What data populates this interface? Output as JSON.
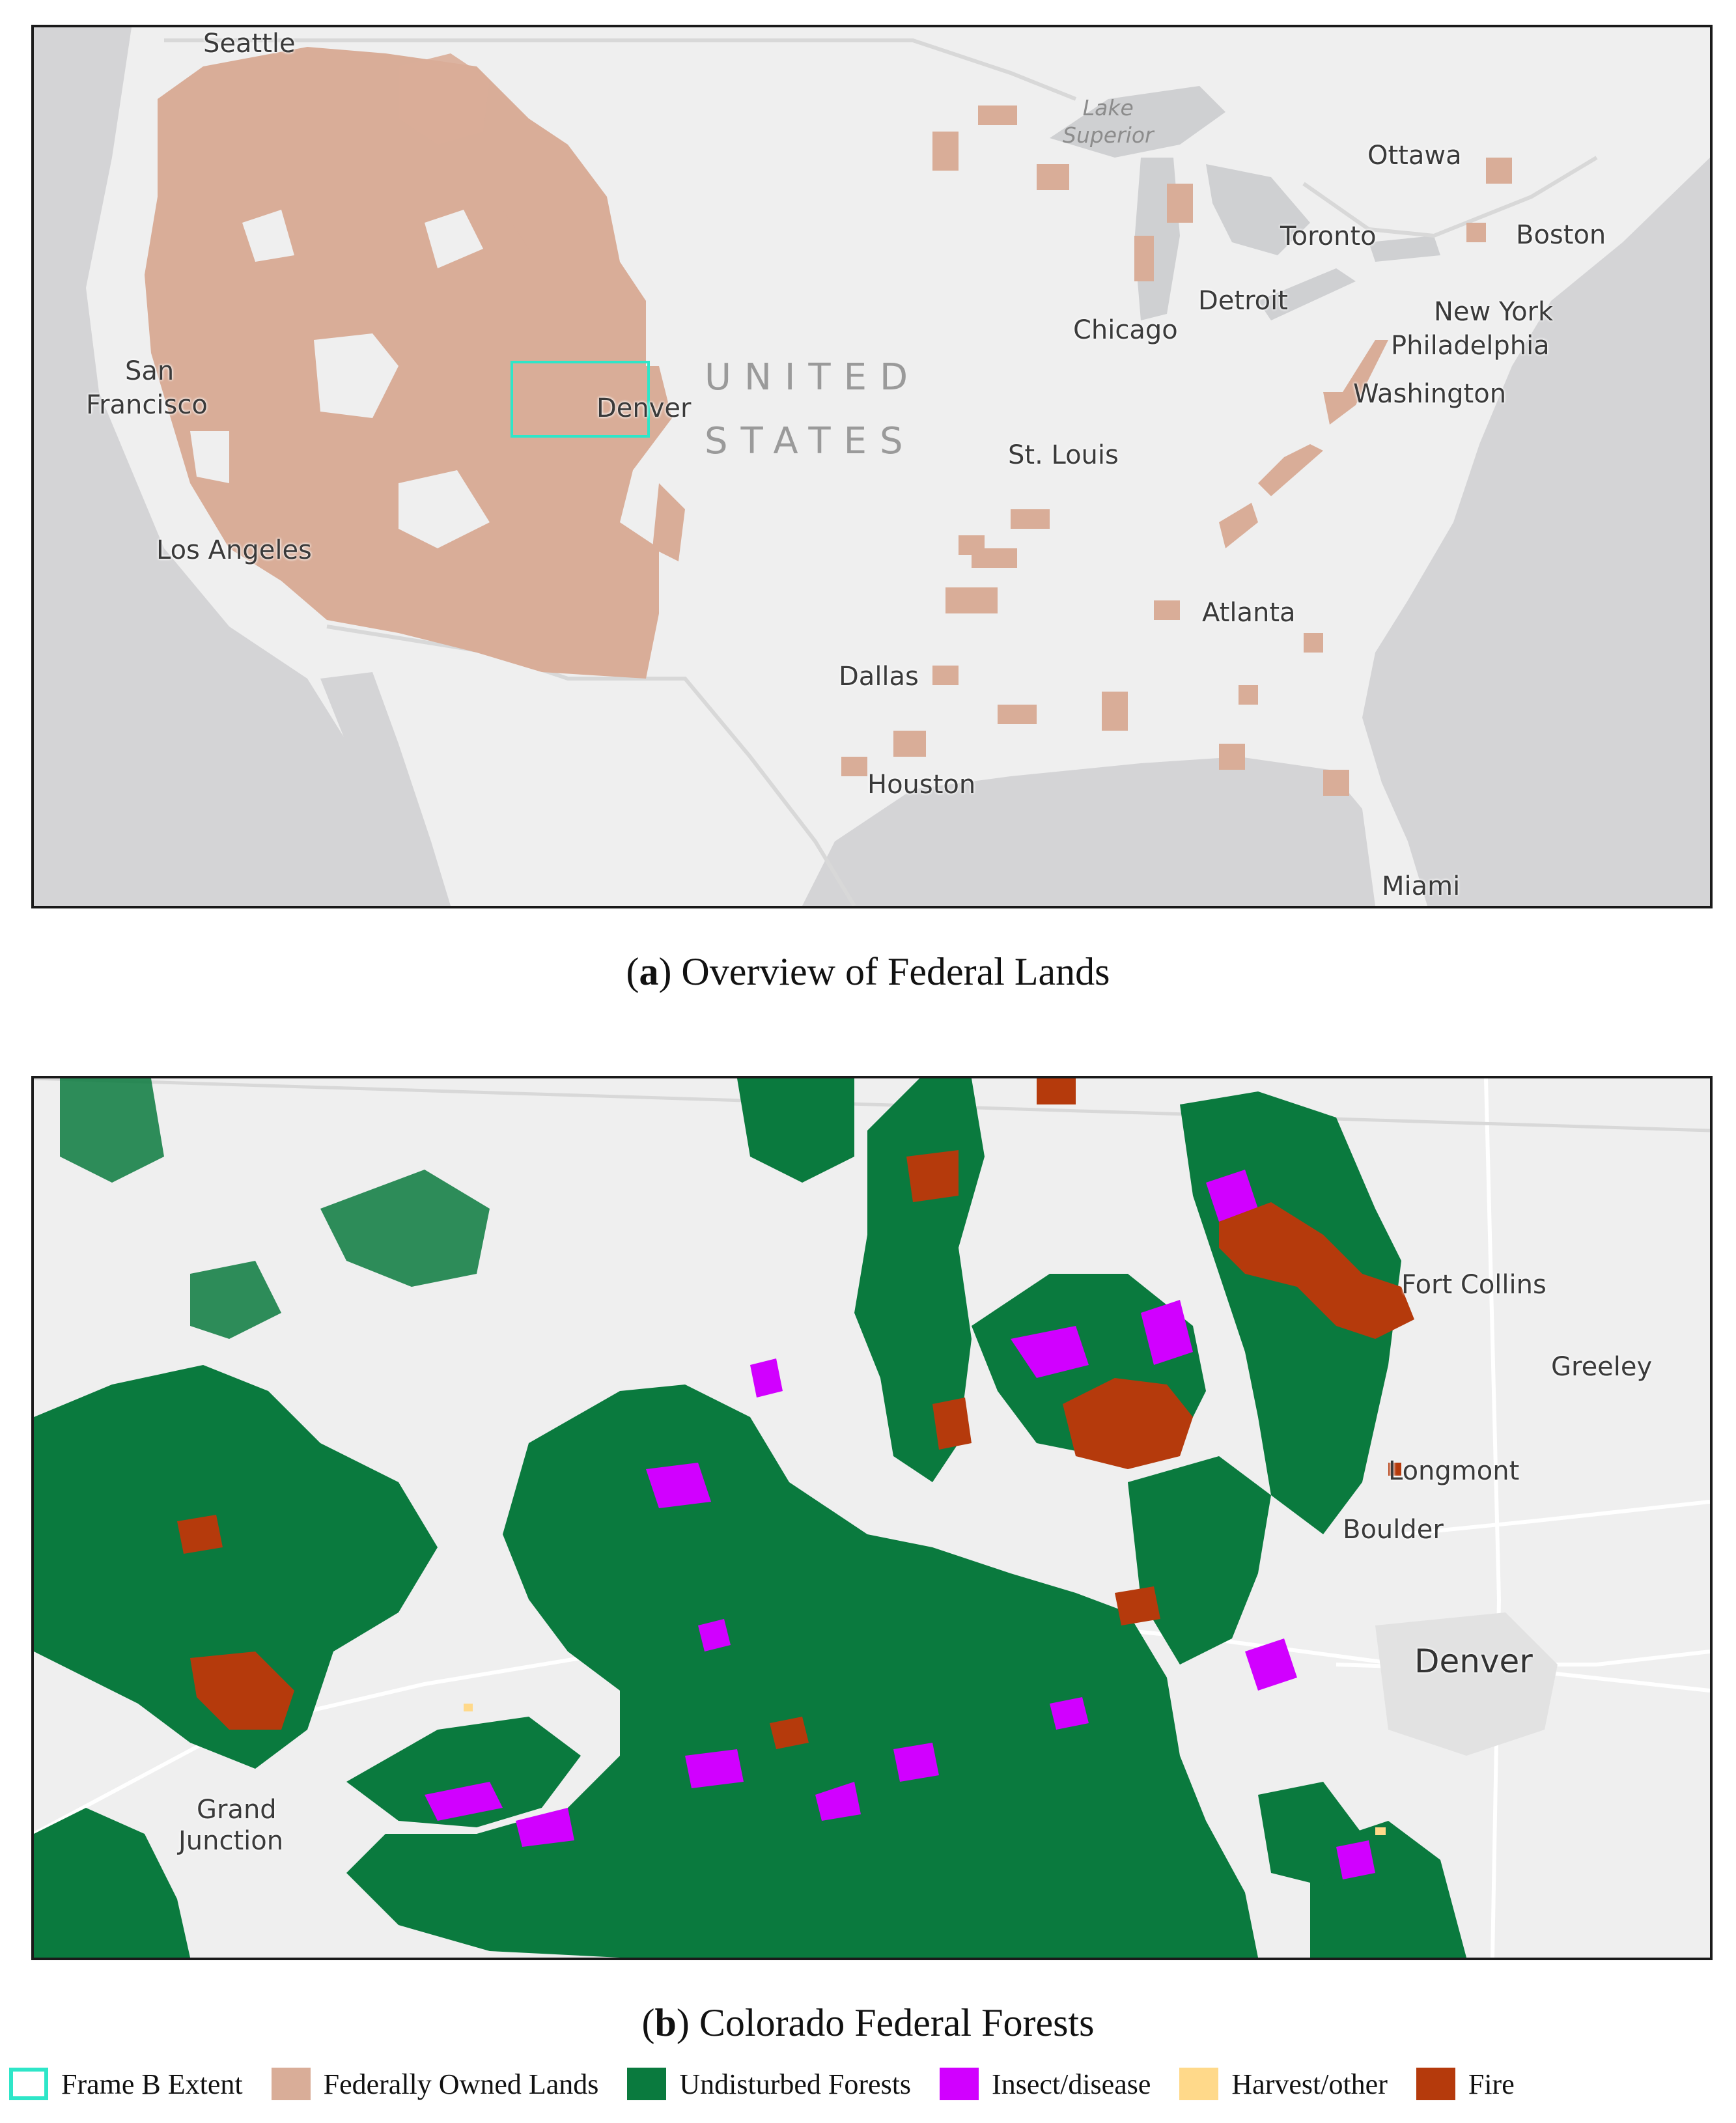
{
  "panel_a": {
    "caption_letter": "a",
    "caption_text": "Overview of Federal Lands",
    "country_line1": "UNITED",
    "country_line2": "STATES",
    "lake_superior": [
      "Lake",
      "Superior"
    ],
    "cities": {
      "seattle": "Seattle",
      "san_francisco_1": "San",
      "san_francisco_2": "Francisco",
      "los_angeles": "Los Angeles",
      "denver": "Denver",
      "dallas": "Dallas",
      "houston": "Houston",
      "st_louis": "St. Louis",
      "chicago": "Chicago",
      "detroit": "Detroit",
      "toronto": "Toronto",
      "ottawa": "Ottawa",
      "boston": "Boston",
      "new_york": "New York",
      "philadelphia": "Philadelphia",
      "washington": "Washington",
      "atlanta": "Atlanta",
      "miami": "Miami"
    }
  },
  "panel_b": {
    "caption_letter": "b",
    "caption_text": "Colorado Federal Forests",
    "cities": {
      "fort_collins": "Fort Collins",
      "greeley": "Greeley",
      "longmont": "Longmont",
      "boulder": "Boulder",
      "denver": "Denver",
      "grand_junction_1": "Grand",
      "grand_junction_2": "Junction"
    }
  },
  "legend": [
    {
      "label": "Frame B Extent",
      "color": "#2ee6c8",
      "style": "outline"
    },
    {
      "label": "Federally Owned Lands",
      "color": "#d9ad98",
      "style": "fill"
    },
    {
      "label": "Undisturbed Forests",
      "color": "#0a7a3e",
      "style": "fill"
    },
    {
      "label": "Insect/disease",
      "color": "#d100ff",
      "style": "fill"
    },
    {
      "label": "Harvest/other",
      "color": "#ffd98a",
      "style": "fill"
    },
    {
      "label": "Fire",
      "color": "#b53a0c",
      "style": "fill"
    }
  ],
  "colors": {
    "land": "#efefef",
    "water": "#d4d4d6",
    "federal": "#d9ad98",
    "forest": "#0a7a3e",
    "insect": "#d100ff",
    "fire": "#b53a0c",
    "frame_b_extent": "#2ee6c8"
  }
}
